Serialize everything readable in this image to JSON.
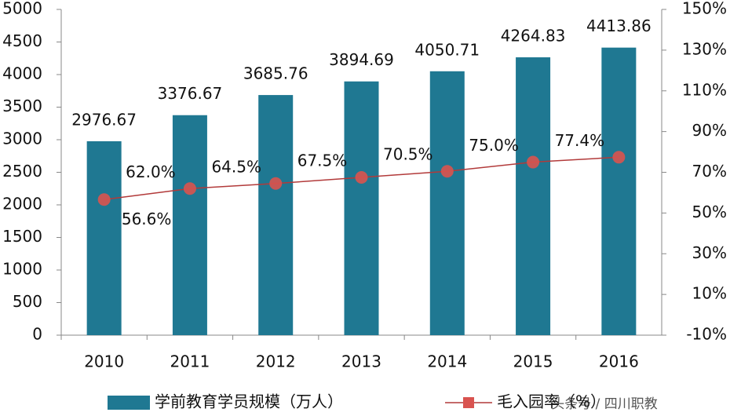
{
  "chart_data": {
    "type": "bar_line",
    "categories": [
      "2010",
      "2011",
      "2012",
      "2013",
      "2014",
      "2015",
      "2016"
    ],
    "series": [
      {
        "name": "学前教育学员规模（万人）",
        "type": "bar",
        "color": "#1f7892",
        "values": [
          2976.67,
          3376.67,
          3685.76,
          3894.69,
          4050.71,
          4264.83,
          4413.86
        ]
      },
      {
        "name": "毛入园率（%）",
        "type": "line",
        "axis": "y2",
        "color": "#b23a3a",
        "marker_color": "#d9534f",
        "values": [
          56.6,
          62.0,
          64.5,
          67.5,
          70.5,
          75.0,
          77.4
        ],
        "value_labels": [
          "56.6%",
          "62.0%",
          "64.5%",
          "67.5%",
          "70.5%",
          "75.0%",
          "77.4%"
        ]
      }
    ],
    "ylim": [
      0,
      5000
    ],
    "yticks": [
      0,
      500,
      1000,
      1500,
      2000,
      2500,
      3000,
      3500,
      4000,
      4500,
      5000
    ],
    "y2lim": [
      -10,
      150
    ],
    "y2ticks": [
      {
        "value": -10,
        "label": "-10%"
      },
      {
        "value": 10,
        "label": "10%"
      },
      {
        "value": 30,
        "label": "30%"
      },
      {
        "value": 50,
        "label": "50%"
      },
      {
        "value": 70,
        "label": "70%"
      },
      {
        "value": 90,
        "label": "90%"
      },
      {
        "value": 110,
        "label": "110%"
      },
      {
        "value": 130,
        "label": "130%"
      },
      {
        "value": 150,
        "label": "150%"
      }
    ],
    "legend": "bottom",
    "watermark": "头条号 / 四川职教"
  }
}
